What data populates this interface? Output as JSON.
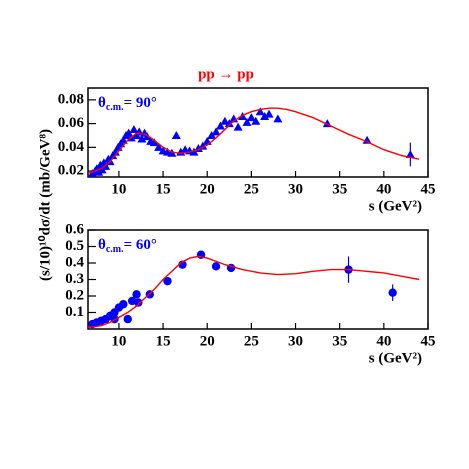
{
  "chart_data": [
    {
      "type": "scatter",
      "title": "pp → pp",
      "y_label": "(s/10)¹⁰dσ/dt (mb/GeV⁸)",
      "x_label": "s  (GeV²)",
      "annotation": {
        "symbol": "θ",
        "sub": "c.m.",
        "text": "= 90°"
      },
      "xlim": [
        6.5,
        45
      ],
      "xticks": [
        10,
        15,
        20,
        25,
        30,
        35,
        40,
        45
      ],
      "ylim": [
        0.015,
        0.09
      ],
      "yticks": [
        0.02,
        0.04,
        0.06,
        0.08
      ],
      "series": [
        {
          "marker": "triangle",
          "color": "#0000ff",
          "x": [
            7.0,
            7.3,
            7.5,
            7.7,
            7.9,
            8.1,
            8.3,
            8.5,
            8.8,
            9.0,
            9.3,
            9.6,
            9.9,
            10.2,
            10.5,
            10.8,
            11.1,
            11.4,
            11.7,
            12.0,
            12.3,
            12.6,
            12.9,
            13.2,
            13.6,
            14.0,
            14.5,
            15.0,
            15.5,
            16.0,
            16.5,
            17.0,
            17.5,
            18.0,
            18.5,
            19.0,
            19.5,
            20.0,
            20.5,
            21.0,
            21.5,
            22.0,
            22.5,
            23.0,
            23.5,
            24.0,
            24.5,
            25.0,
            25.5,
            26.0,
            26.5,
            27.0,
            28.0,
            33.6,
            38.1,
            43.0
          ],
          "values": [
            0.018,
            0.02,
            0.022,
            0.019,
            0.025,
            0.021,
            0.027,
            0.024,
            0.03,
            0.028,
            0.033,
            0.036,
            0.04,
            0.043,
            0.046,
            0.05,
            0.052,
            0.048,
            0.055,
            0.05,
            0.053,
            0.047,
            0.052,
            0.049,
            0.045,
            0.044,
            0.04,
            0.037,
            0.036,
            0.035,
            0.05,
            0.036,
            0.038,
            0.037,
            0.036,
            0.039,
            0.041,
            0.045,
            0.05,
            0.053,
            0.058,
            0.062,
            0.06,
            0.064,
            0.057,
            0.066,
            0.061,
            0.065,
            0.062,
            0.07,
            0.066,
            0.068,
            0.064,
            0.06,
            0.046,
            0.034
          ],
          "errors": [
            null,
            null,
            null,
            null,
            null,
            null,
            null,
            null,
            null,
            null,
            null,
            null,
            null,
            null,
            null,
            null,
            null,
            null,
            null,
            null,
            null,
            null,
            null,
            null,
            null,
            null,
            null,
            null,
            null,
            null,
            null,
            null,
            null,
            null,
            null,
            null,
            null,
            null,
            null,
            null,
            null,
            null,
            null,
            null,
            null,
            null,
            null,
            null,
            null,
            null,
            null,
            null,
            null,
            null,
            null,
            0.01
          ]
        },
        {
          "style": "line",
          "color": "#ff0000",
          "x": [
            6.5,
            8,
            9,
            10,
            11,
            12,
            13,
            14,
            15,
            16,
            17,
            18,
            19,
            20,
            21,
            22,
            23,
            24,
            25,
            26,
            27,
            28,
            29,
            30,
            32,
            34,
            36,
            38,
            40,
            42,
            44
          ],
          "values": [
            0.018,
            0.022,
            0.028,
            0.037,
            0.046,
            0.052,
            0.051,
            0.046,
            0.04,
            0.036,
            0.035,
            0.036,
            0.038,
            0.042,
            0.048,
            0.055,
            0.062,
            0.067,
            0.07,
            0.072,
            0.073,
            0.073,
            0.072,
            0.07,
            0.065,
            0.058,
            0.051,
            0.045,
            0.038,
            0.033,
            0.03
          ]
        }
      ]
    },
    {
      "type": "scatter",
      "x_label": "s  (GeV²)",
      "annotation": {
        "symbol": "θ",
        "sub": "c.m.",
        "text": "= 60°"
      },
      "xlim": [
        6.5,
        45
      ],
      "xticks": [
        10,
        15,
        20,
        25,
        30,
        35,
        40,
        45
      ],
      "ylim": [
        0,
        0.6
      ],
      "yticks": [
        0.1,
        0.2,
        0.3,
        0.4,
        0.5,
        0.6
      ],
      "series": [
        {
          "marker": "circle",
          "color": "#0000ff",
          "x": [
            7.0,
            7.5,
            8.0,
            8.5,
            9.0,
            9.5,
            9.5,
            10.0,
            10.5,
            11.0,
            11.5,
            12.0,
            12.2,
            13.5,
            15.5,
            17.2,
            19.3,
            21.0,
            22.7,
            36.0,
            41.0
          ],
          "values": [
            0.03,
            0.04,
            0.05,
            0.06,
            0.08,
            0.1,
            0.06,
            0.13,
            0.15,
            0.06,
            0.17,
            0.21,
            0.16,
            0.21,
            0.29,
            0.39,
            0.45,
            0.38,
            0.37,
            0.36,
            0.22
          ],
          "errors": [
            null,
            null,
            null,
            null,
            null,
            null,
            null,
            null,
            null,
            null,
            null,
            null,
            null,
            null,
            null,
            null,
            null,
            null,
            null,
            0.08,
            0.05
          ]
        },
        {
          "style": "line",
          "color": "#ff0000",
          "x": [
            6.5,
            8,
            9,
            10,
            11,
            12,
            13,
            14,
            15,
            16,
            17,
            18,
            19,
            20,
            21,
            22,
            24,
            26,
            28,
            30,
            32,
            34,
            36,
            38,
            40,
            42,
            44
          ],
          "values": [
            0.01,
            0.02,
            0.04,
            0.07,
            0.1,
            0.14,
            0.19,
            0.24,
            0.3,
            0.35,
            0.4,
            0.43,
            0.44,
            0.43,
            0.41,
            0.39,
            0.36,
            0.34,
            0.33,
            0.335,
            0.35,
            0.36,
            0.36,
            0.35,
            0.34,
            0.32,
            0.3
          ]
        }
      ]
    }
  ]
}
